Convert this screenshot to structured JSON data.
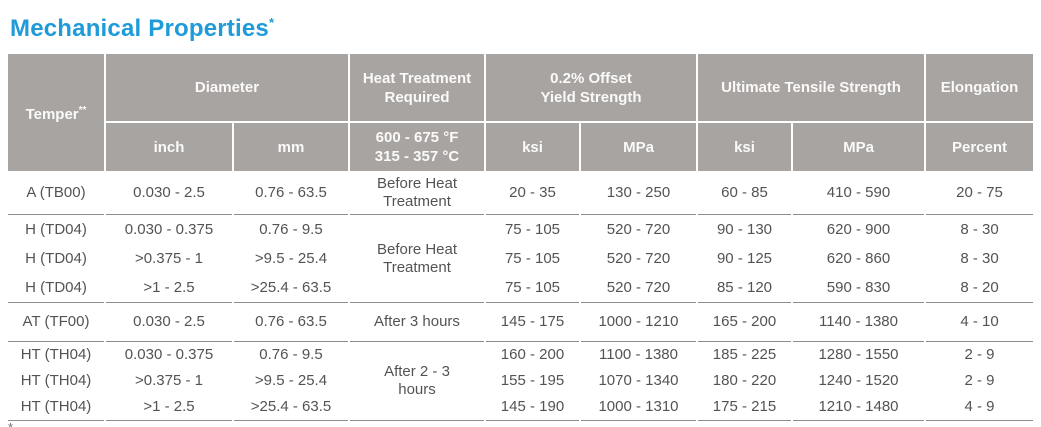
{
  "title": {
    "text": "Mechanical Properties",
    "superscript": "*"
  },
  "colors": {
    "title_blue": "#1e9bd8",
    "header_bg": "#a8a4a2",
    "header_text": "#fbfaf9",
    "body_text": "#555352",
    "divider": "#8f8d8c"
  },
  "header": {
    "temper": {
      "label": "Temper",
      "superscript": "**"
    },
    "diameter": {
      "label": "Diameter",
      "sub": [
        "inch",
        "mm"
      ]
    },
    "heat_treatment": {
      "label": "Heat Treatment Required",
      "sub_f": "600 - 675 °F",
      "sub_c": "315 - 357 °C"
    },
    "yield": {
      "label": "0.2% Offset Yield Strength",
      "sub": [
        "ksi",
        "MPa"
      ]
    },
    "uts": {
      "label": "Ultimate Tensile Strength",
      "sub": [
        "ksi",
        "MPa"
      ]
    },
    "elongation": {
      "label": "Elongation",
      "sub": "Percent"
    }
  },
  "groups": [
    {
      "heat_treatment": "Before Heat Treatment",
      "rows": [
        {
          "temper": "A (TB00)",
          "inch": "0.030 - 2.5",
          "mm": "0.76 - 63.5",
          "yield_ksi": "20 - 35",
          "yield_mpa": "130 - 250",
          "uts_ksi": "60 - 85",
          "uts_mpa": "410 - 590",
          "elongation": "20 - 75"
        }
      ]
    },
    {
      "heat_treatment": "Before Heat Treatment",
      "rows": [
        {
          "temper": "H (TD04)",
          "inch": "0.030 - 0.375",
          "mm": "0.76 - 9.5",
          "yield_ksi": "75 - 105",
          "yield_mpa": "520 - 720",
          "uts_ksi": "90 - 130",
          "uts_mpa": "620 - 900",
          "elongation": "8 - 30"
        },
        {
          "temper": "H (TD04)",
          "inch": ">0.375 - 1",
          "mm": ">9.5 - 25.4",
          "yield_ksi": "75 - 105",
          "yield_mpa": "520 - 720",
          "uts_ksi": "90 - 125",
          "uts_mpa": "620 - 860",
          "elongation": "8 - 30"
        },
        {
          "temper": "H (TD04)",
          "inch": ">1 - 2.5",
          "mm": ">25.4 - 63.5",
          "yield_ksi": "75 - 105",
          "yield_mpa": "520 - 720",
          "uts_ksi": "85 - 120",
          "uts_mpa": "590 - 830",
          "elongation": "8 - 20"
        }
      ]
    },
    {
      "heat_treatment": "After 3 hours",
      "rows": [
        {
          "temper": "AT (TF00)",
          "inch": "0.030 - 2.5",
          "mm": "0.76 - 63.5",
          "yield_ksi": "145 - 175",
          "yield_mpa": "1000 - 1210",
          "uts_ksi": "165 - 200",
          "uts_mpa": "1140 - 1380",
          "elongation": "4 - 10"
        }
      ]
    },
    {
      "heat_treatment": "After 2 - 3 hours",
      "rows": [
        {
          "temper": "HT (TH04)",
          "inch": "0.030 - 0.375",
          "mm": "0.76 - 9.5",
          "yield_ksi": "160 - 200",
          "yield_mpa": "1100 - 1380",
          "uts_ksi": "185 - 225",
          "uts_mpa": "1280 - 1550",
          "elongation": "2 - 9"
        },
        {
          "temper": "HT (TH04)",
          "inch": ">0.375 - 1",
          "mm": ">9.5 - 25.4",
          "yield_ksi": "155 - 195",
          "yield_mpa": "1070 - 1340",
          "uts_ksi": "180 - 220",
          "uts_mpa": "1240 - 1520",
          "elongation": "2 - 9"
        },
        {
          "temper": "HT (TH04)",
          "inch": ">1 - 2.5",
          "mm": ">25.4 - 63.5",
          "yield_ksi": "145 - 190",
          "yield_mpa": "1000 - 1310",
          "uts_ksi": "175 - 215",
          "uts_mpa": "1210 - 1480",
          "elongation": "4 - 9"
        }
      ]
    }
  ],
  "footnote": {
    "marker": "*"
  }
}
